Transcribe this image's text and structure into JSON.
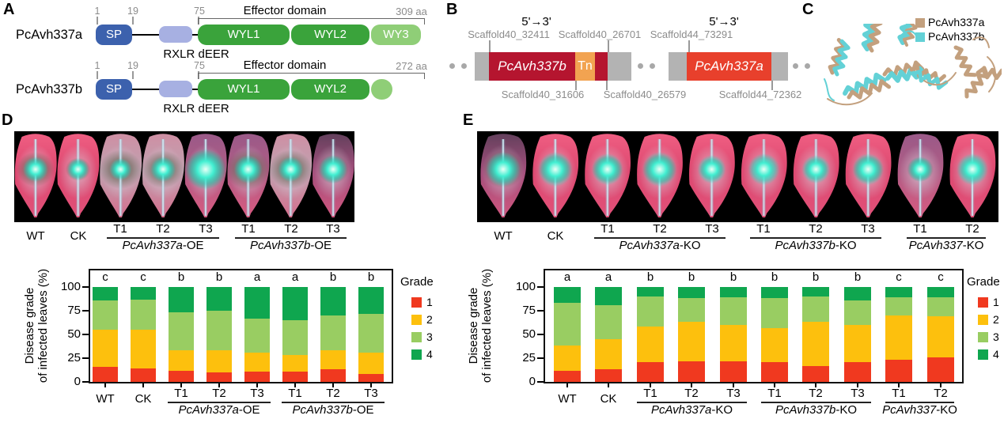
{
  "panel_labels": {
    "a": "A",
    "b": "B",
    "c": "C",
    "d": "D",
    "e": "E"
  },
  "panel_a": {
    "proteins": [
      {
        "name": "PcAvh337a",
        "n1": "1",
        "n2": "19",
        "n3": "75",
        "sp": "SP",
        "motif": "RXLR dEER",
        "effector": "Effector domain",
        "length": "309 aa",
        "d1": "WYL1",
        "d2": "WYL2",
        "d3": "WY3"
      },
      {
        "name": "PcAvh337b",
        "n1": "1",
        "n2": "19",
        "n3": "75",
        "sp": "SP",
        "motif": "RXLR dEER",
        "effector": "Effector domain",
        "length": "272 aa",
        "d1": "WYL1",
        "d2": "WYL2"
      }
    ],
    "colors": {
      "sp": "#3c61ad",
      "rxlr": "#a7b0e2",
      "wyl": "#3aa33b",
      "light": "#8fce77"
    }
  },
  "panel_b": {
    "directions": [
      "5'→3'",
      "5'→3'"
    ],
    "top_coords": [
      "Scaffold40_32411",
      "Scaffold40_26701",
      "Scaffold44_73291"
    ],
    "bottom_coords": [
      "Scaffold40_31606",
      "Scaffold40_26579",
      "Scaffold44_72362"
    ],
    "gene_b": "PcAvh337b",
    "tn": "Tn",
    "gene_a": "PcAvh337a",
    "colors": {
      "gene_b": "#b5152f",
      "tn": "#f2a351",
      "gene_a": "#e8402c",
      "flank": "#b3b3b3"
    }
  },
  "panel_c": {
    "legend": [
      {
        "label": "PcAvh337a",
        "color": "#c3a07e"
      },
      {
        "label": "PcAvh337b",
        "color": "#63d1d6"
      }
    ]
  },
  "panel_d_photos": {
    "groups": [
      {
        "label": "WT",
        "cols": 1
      },
      {
        "label": "CK",
        "cols": 1
      },
      {
        "label": "PcAvh337a-OE",
        "cols": 3,
        "col_labels": [
          "T1",
          "T2",
          "T3"
        ]
      },
      {
        "label": "PcAvh337b-OE",
        "cols": 3,
        "col_labels": [
          "T1",
          "T2",
          "T3"
        ]
      }
    ]
  },
  "panel_e_photos": {
    "groups": [
      {
        "label": "WT",
        "cols": 1
      },
      {
        "label": "CK",
        "cols": 1
      },
      {
        "label": "PcAvh337a-KO",
        "cols": 3,
        "col_labels": [
          "T1",
          "T2",
          "T3"
        ]
      },
      {
        "label": "PcAvh337b-KO",
        "cols": 3,
        "col_labels": [
          "T1",
          "T2",
          "T3"
        ]
      },
      {
        "label": "PcAvh337-KO",
        "cols": 2,
        "col_labels": [
          "T1",
          "T2"
        ]
      }
    ]
  },
  "chart_data": [
    {
      "type": "bar",
      "stacked": true,
      "panel": "D",
      "title": "",
      "ylabel": "Disease grade\nof infected leaves (%)",
      "ylim": [
        0,
        100
      ],
      "yticks": [
        0,
        25,
        50,
        75,
        100
      ],
      "categories": [
        "WT",
        "CK",
        "T1",
        "T2",
        "T3",
        "T1",
        "T2",
        "T3"
      ],
      "groups": [
        {
          "label": "WT",
          "cols": 1
        },
        {
          "label": "CK",
          "cols": 1
        },
        {
          "label": "PcAvh337a-OE",
          "cols": 3,
          "col_labels": [
            "T1",
            "T2",
            "T3"
          ]
        },
        {
          "label": "PcAvh337b-OE",
          "cols": 3,
          "col_labels": [
            "T1",
            "T2",
            "T3"
          ]
        }
      ],
      "sig_letters": [
        "c",
        "c",
        "b",
        "b",
        "a",
        "a",
        "b",
        "b"
      ],
      "legend_title": "Grade",
      "legend_position": "right",
      "grid": false,
      "series": [
        {
          "name": "1",
          "color": "#f0391f",
          "values": [
            16,
            14,
            12,
            10,
            11,
            11,
            13,
            8
          ]
        },
        {
          "name": "2",
          "color": "#fdc00d",
          "values": [
            39,
            41,
            21,
            23,
            20,
            17,
            20,
            23
          ]
        },
        {
          "name": "3",
          "color": "#99cd62",
          "values": [
            31,
            32,
            40,
            42,
            36,
            37,
            37,
            41
          ]
        },
        {
          "name": "4",
          "color": "#0fa64f",
          "values": [
            14,
            13,
            27,
            25,
            33,
            35,
            30,
            28
          ]
        }
      ]
    },
    {
      "type": "bar",
      "stacked": true,
      "panel": "E",
      "title": "",
      "ylabel": "Disease grade\nof infected leaves (%)",
      "ylim": [
        0,
        100
      ],
      "yticks": [
        0,
        25,
        50,
        75,
        100
      ],
      "categories": [
        "WT",
        "CK",
        "T1",
        "T2",
        "T3",
        "T1",
        "T2",
        "T3",
        "T1",
        "T2"
      ],
      "groups": [
        {
          "label": "WT",
          "cols": 1
        },
        {
          "label": "CK",
          "cols": 1
        },
        {
          "label": "PcAvh337a-KO",
          "cols": 3,
          "col_labels": [
            "T1",
            "T2",
            "T3"
          ]
        },
        {
          "label": "PcAvh337b-KO",
          "cols": 3,
          "col_labels": [
            "T1",
            "T2",
            "T3"
          ]
        },
        {
          "label": "PcAvh337-KO",
          "cols": 2,
          "col_labels": [
            "T1",
            "T2"
          ]
        }
      ],
      "sig_letters": [
        "a",
        "a",
        "b",
        "b",
        "b",
        "b",
        "b",
        "b",
        "c",
        "c"
      ],
      "legend_title": "Grade",
      "legend_position": "right",
      "grid": false,
      "series": [
        {
          "name": "1",
          "color": "#f0391f",
          "values": [
            12,
            13,
            21,
            22,
            22,
            21,
            17,
            21,
            23,
            26
          ]
        },
        {
          "name": "2",
          "color": "#fdc00d",
          "values": [
            26,
            32,
            37,
            41,
            38,
            36,
            46,
            39,
            47,
            43
          ]
        },
        {
          "name": "3",
          "color": "#99cd62",
          "values": [
            45,
            36,
            32,
            25,
            29,
            31,
            27,
            26,
            19,
            20
          ]
        },
        {
          "name": "4",
          "color": "#0fa64f",
          "values": [
            17,
            19,
            10,
            12,
            11,
            12,
            10,
            14,
            11,
            11
          ]
        }
      ]
    }
  ]
}
